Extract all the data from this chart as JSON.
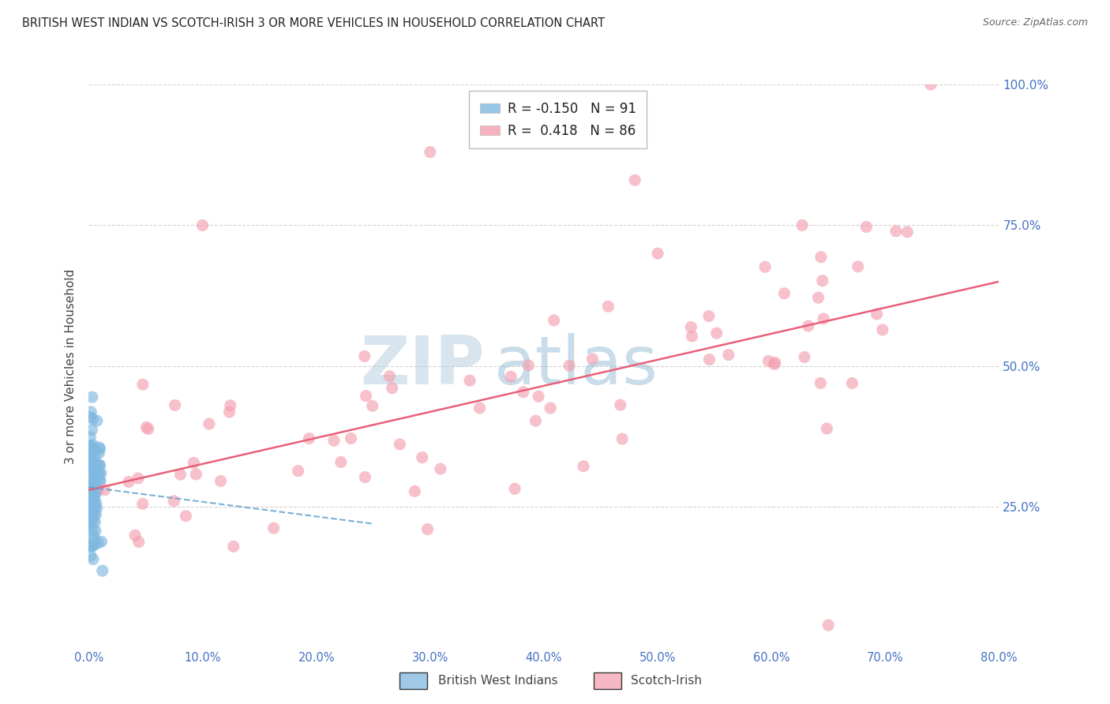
{
  "title": "BRITISH WEST INDIAN VS SCOTCH-IRISH 3 OR MORE VEHICLES IN HOUSEHOLD CORRELATION CHART",
  "source": "Source: ZipAtlas.com",
  "ylabel": "3 or more Vehicles in Household",
  "watermark_zip": "ZIP",
  "watermark_atlas": "atlas",
  "legend_bwi": "British West Indians",
  "legend_si": "Scotch-Irish",
  "r_bwi": -0.15,
  "n_bwi": 91,
  "r_si": 0.418,
  "n_si": 86,
  "xlim": [
    0.0,
    0.8
  ],
  "ylim": [
    0.0,
    1.0
  ],
  "color_bwi": "#7fb8e0",
  "color_si": "#f4a0b0",
  "color_bwi_line": "#5a9ec8",
  "color_si_line": "#e8607a",
  "color_axis_labels": "#4472C4",
  "background": "#ffffff",
  "si_trend_x0": 0.0,
  "si_trend_y0": 0.28,
  "si_trend_x1": 0.8,
  "si_trend_y1": 0.65,
  "bwi_trend_x0": 0.0,
  "bwi_trend_y0": 0.285,
  "bwi_trend_x1": 0.25,
  "bwi_trend_y1": 0.22
}
